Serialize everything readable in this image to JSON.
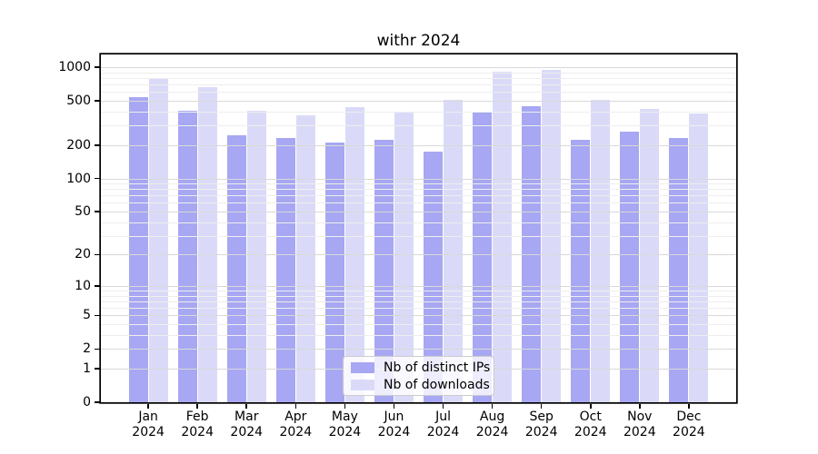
{
  "chart_data": {
    "type": "bar",
    "title": "withr 2024",
    "categories": [
      "Jan",
      "Feb",
      "Mar",
      "Apr",
      "May",
      "Jun",
      "Jul",
      "Aug",
      "Sep",
      "Oct",
      "Nov",
      "Dec"
    ],
    "year_label": "2024",
    "series": [
      {
        "name": "Nb of distinct IPs",
        "color": "#a7a7f3",
        "values": [
          535,
          410,
          245,
          230,
          210,
          225,
          175,
          390,
          448,
          225,
          265,
          230
        ]
      },
      {
        "name": "Nb of downloads",
        "color": "#dadaf8",
        "values": [
          800,
          660,
          405,
          370,
          435,
          395,
          508,
          910,
          950,
          508,
          420,
          385
        ]
      }
    ],
    "y_axis": {
      "scale": "log1p",
      "tick_values": [
        1000,
        500,
        200,
        100,
        50,
        20,
        10,
        5,
        2,
        1,
        0
      ],
      "tick_labels": [
        "1000",
        "500",
        "200",
        "100",
        "50",
        "20",
        "10",
        "5",
        "2",
        "1",
        "0"
      ],
      "top_value": 1300
    },
    "grid": true,
    "legend_position": "lower center"
  }
}
